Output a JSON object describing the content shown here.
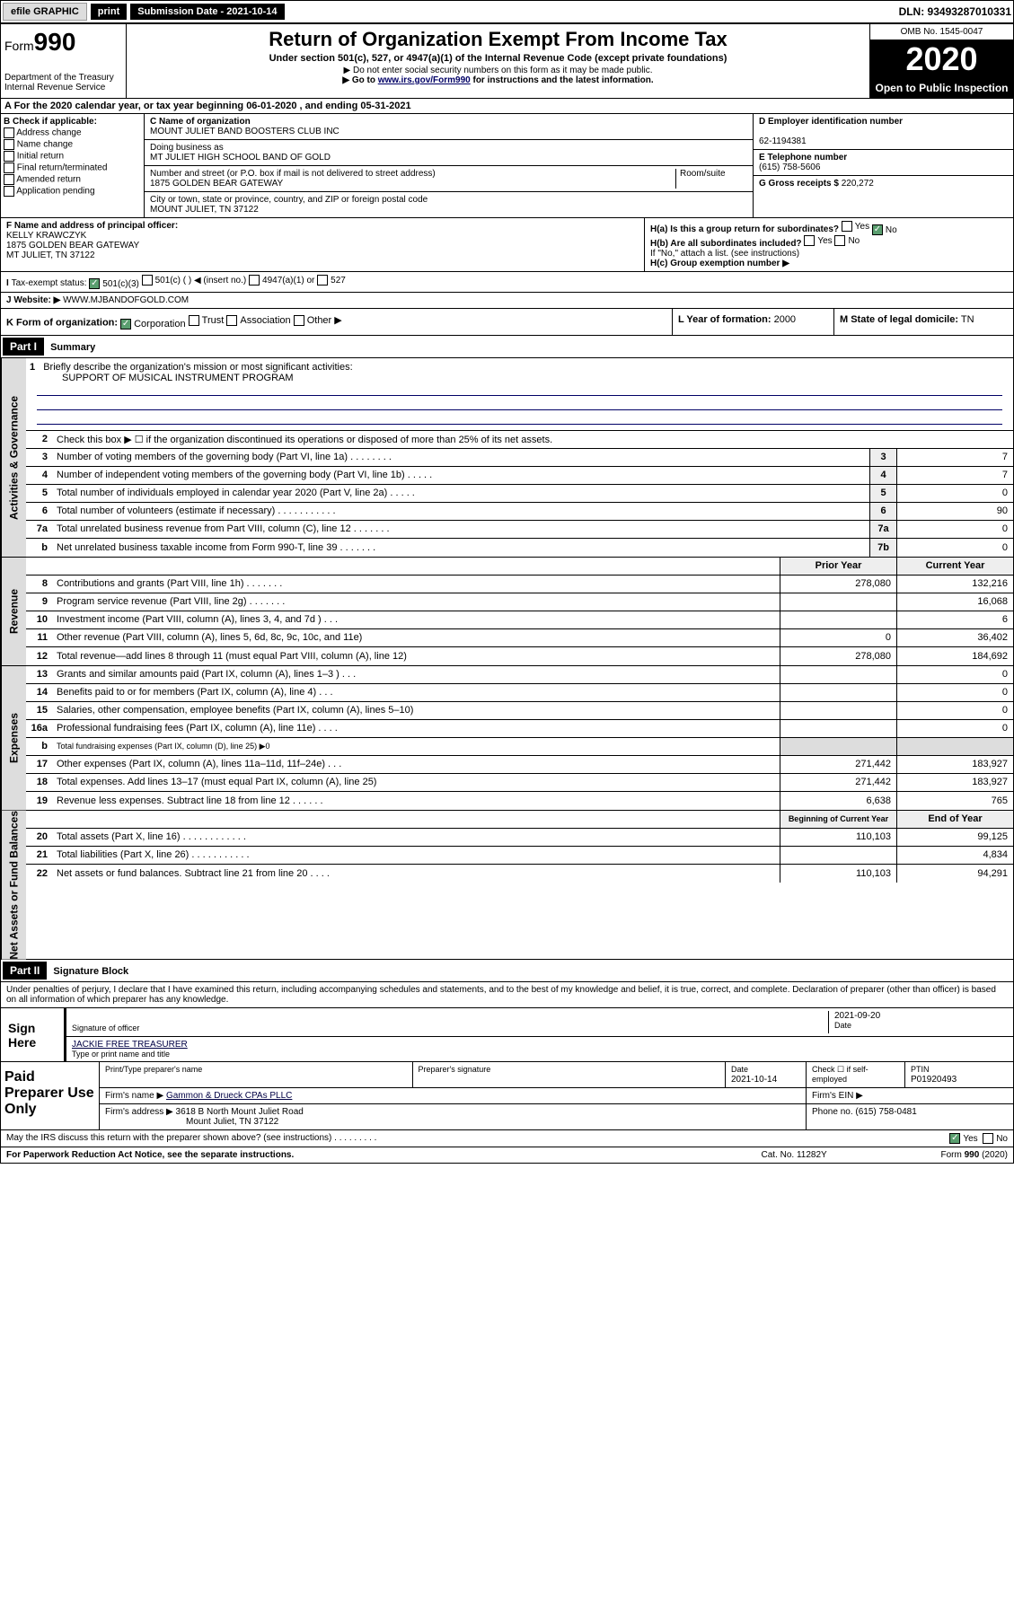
{
  "topbar": {
    "efile": "efile GRAPHIC",
    "print": "print",
    "subdate_label": "Submission Date - 2021-10-14",
    "dln": "DLN: 93493287010331"
  },
  "header": {
    "form_prefix": "Form",
    "form_num": "990",
    "dept1": "Department of the Treasury",
    "dept2": "Internal Revenue Service",
    "title": "Return of Organization Exempt From Income Tax",
    "sub1": "Under section 501(c), 527, or 4947(a)(1) of the Internal Revenue Code (except private foundations)",
    "sub2": "▶ Do not enter social security numbers on this form as it may be made public.",
    "sub3_pre": "▶ Go to ",
    "sub3_link": "www.irs.gov/Form990",
    "sub3_post": " for instructions and the latest information.",
    "omb": "OMB No. 1545-0047",
    "year": "2020",
    "open": "Open to Public Inspection"
  },
  "rowA": "A For the 2020 calendar year, or tax year beginning 06-01-2020    , and ending 05-31-2021",
  "colB": {
    "label": "B Check if applicable:",
    "opts": [
      "Address change",
      "Name change",
      "Initial return",
      "Final return/terminated",
      "Amended return",
      "Application pending"
    ]
  },
  "colC": {
    "name_label": "C Name of organization",
    "name": "MOUNT JULIET BAND BOOSTERS CLUB INC",
    "dba_label": "Doing business as",
    "dba": "MT JULIET HIGH SCHOOL BAND OF GOLD",
    "addr_label": "Number and street (or P.O. box if mail is not delivered to street address)",
    "room_label": "Room/suite",
    "addr": "1875 GOLDEN BEAR GATEWAY",
    "city_label": "City or town, state or province, country, and ZIP or foreign postal code",
    "city": "MOUNT JULIET, TN  37122"
  },
  "colD": {
    "ein_label": "D Employer identification number",
    "ein": "62-1194381",
    "tel_label": "E Telephone number",
    "tel": "(615) 758-5606",
    "gross_label": "G Gross receipts $",
    "gross": "220,272"
  },
  "rowF": {
    "label": "F Name and address of principal officer:",
    "name": "KELLY KRAWCZYK",
    "addr1": "1875 GOLDEN BEAR GATEWAY",
    "addr2": "MT JULIET, TN  37122"
  },
  "rowH": {
    "a": "H(a)  Is this a group return for subordinates?",
    "b": "H(b)  Are all subordinates included?",
    "b_note": "If \"No,\" attach a list. (see instructions)",
    "c": "H(c)  Group exemption number ▶",
    "yes": "Yes",
    "no": "No"
  },
  "rowI": {
    "label": "Tax-exempt status:",
    "opt1": "501(c)(3)",
    "opt2": "501(c) (  ) ◀ (insert no.)",
    "opt3": "4947(a)(1) or",
    "opt4": "527"
  },
  "rowJ": {
    "label": "Website: ▶",
    "val": "WWW.MJBANDOFGOLD.COM"
  },
  "rowK": {
    "label": "K Form of organization:",
    "opts": [
      "Corporation",
      "Trust",
      "Association",
      "Other ▶"
    ]
  },
  "rowL": {
    "label": "L Year of formation:",
    "val": "2000"
  },
  "rowM": {
    "label": "M State of legal domicile:",
    "val": "TN"
  },
  "part1": {
    "hdr": "Part I",
    "title": "Summary"
  },
  "summary": {
    "vtabs": [
      "Activities & Governance",
      "Revenue",
      "Expenses",
      "Net Assets or Fund Balances"
    ],
    "line1": {
      "num": "1",
      "text": "Briefly describe the organization's mission or most significant activities:",
      "val": "SUPPORT OF MUSICAL INSTRUMENT PROGRAM"
    },
    "line2": {
      "num": "2",
      "text": "Check this box ▶ ☐  if the organization discontinued its operations or disposed of more than 25% of its net assets."
    },
    "lines_gov": [
      {
        "num": "3",
        "text": "Number of voting members of the governing body (Part VI, line 1a)  .  .  .  .  .  .  .  .",
        "box": "3",
        "cur": "7"
      },
      {
        "num": "4",
        "text": "Number of independent voting members of the governing body (Part VI, line 1b)  .  .  .  .  .",
        "box": "4",
        "cur": "7"
      },
      {
        "num": "5",
        "text": "Total number of individuals employed in calendar year 2020 (Part V, line 2a)  .  .  .  .  .",
        "box": "5",
        "cur": "0"
      },
      {
        "num": "6",
        "text": "Total number of volunteers (estimate if necessary)  .  .  .  .  .  .  .  .  .  .  .",
        "box": "6",
        "cur": "90"
      },
      {
        "num": "7a",
        "text": "Total unrelated business revenue from Part VIII, column (C), line 12  .  .  .  .  .  .  .",
        "box": "7a",
        "cur": "0"
      },
      {
        "num": "b",
        "text": "Net unrelated business taxable income from Form 990-T, line 39  .  .  .  .  .  .  .",
        "box": "7b",
        "cur": "0"
      }
    ],
    "hdr_prior": "Prior Year",
    "hdr_cur": "Current Year",
    "lines_rev": [
      {
        "num": "8",
        "text": "Contributions and grants (Part VIII, line 1h)  .  .  .  .  .  .  .",
        "prior": "278,080",
        "cur": "132,216"
      },
      {
        "num": "9",
        "text": "Program service revenue (Part VIII, line 2g)  .  .  .  .  .  .  .",
        "prior": "",
        "cur": "16,068"
      },
      {
        "num": "10",
        "text": "Investment income (Part VIII, column (A), lines 3, 4, and 7d )  .  .  .",
        "prior": "",
        "cur": "6"
      },
      {
        "num": "11",
        "text": "Other revenue (Part VIII, column (A), lines 5, 6d, 8c, 9c, 10c, and 11e)",
        "prior": "0",
        "cur": "36,402"
      },
      {
        "num": "12",
        "text": "Total revenue—add lines 8 through 11 (must equal Part VIII, column (A), line 12)",
        "prior": "278,080",
        "cur": "184,692"
      }
    ],
    "lines_exp": [
      {
        "num": "13",
        "text": "Grants and similar amounts paid (Part IX, column (A), lines 1–3 )  .  .  .",
        "prior": "",
        "cur": "0"
      },
      {
        "num": "14",
        "text": "Benefits paid to or for members (Part IX, column (A), line 4)  .  .  .",
        "prior": "",
        "cur": "0"
      },
      {
        "num": "15",
        "text": "Salaries, other compensation, employee benefits (Part IX, column (A), lines 5–10)",
        "prior": "",
        "cur": "0"
      },
      {
        "num": "16a",
        "text": "Professional fundraising fees (Part IX, column (A), line 11e)  .  .  .  .",
        "prior": "",
        "cur": "0"
      },
      {
        "num": "b",
        "text": "Total fundraising expenses (Part IX, column (D), line 25) ▶0",
        "prior": "—",
        "cur": "—"
      },
      {
        "num": "17",
        "text": "Other expenses (Part IX, column (A), lines 11a–11d, 11f–24e)  .  .  .",
        "prior": "271,442",
        "cur": "183,927"
      },
      {
        "num": "18",
        "text": "Total expenses. Add lines 13–17 (must equal Part IX, column (A), line 25)",
        "prior": "271,442",
        "cur": "183,927"
      },
      {
        "num": "19",
        "text": "Revenue less expenses. Subtract line 18 from line 12  .  .  .  .  .  .",
        "prior": "6,638",
        "cur": "765"
      }
    ],
    "hdr_beg": "Beginning of Current Year",
    "hdr_end": "End of Year",
    "lines_net": [
      {
        "num": "20",
        "text": "Total assets (Part X, line 16)  .  .  .  .  .  .  .  .  .  .  .  .",
        "prior": "110,103",
        "cur": "99,125"
      },
      {
        "num": "21",
        "text": "Total liabilities (Part X, line 26)  .  .  .  .  .  .  .  .  .  .  .",
        "prior": "",
        "cur": "4,834"
      },
      {
        "num": "22",
        "text": "Net assets or fund balances. Subtract line 21 from line 20  .  .  .  .",
        "prior": "110,103",
        "cur": "94,291"
      }
    ]
  },
  "part2": {
    "hdr": "Part II",
    "title": "Signature Block"
  },
  "sig": {
    "decl": "Under penalties of perjury, I declare that I have examined this return, including accompanying schedules and statements, and to the best of my knowledge and belief, it is true, correct, and complete. Declaration of preparer (other than officer) is based on all information of which preparer has any knowledge.",
    "sign_here": "Sign Here",
    "sig_officer": "Signature of officer",
    "date": "2021-09-20",
    "date_label": "Date",
    "name_title": "JACKIE FREE TREASURER",
    "name_label": "Type or print name and title",
    "paid_label": "Paid Preparer Use Only",
    "prep_name_label": "Print/Type preparer's name",
    "prep_sig_label": "Preparer's signature",
    "prep_date_label": "Date",
    "prep_date": "2021-10-14",
    "check_self": "Check ☐ if self-employed",
    "ptin_label": "PTIN",
    "ptin": "P01920493",
    "firm_name_label": "Firm's name    ▶",
    "firm_name": "Gammon & Drueck CPAs PLLC",
    "firm_ein_label": "Firm's EIN ▶",
    "firm_addr_label": "Firm's address ▶",
    "firm_addr1": "3618 B North Mount Juliet Road",
    "firm_addr2": "Mount Juliet, TN  37122",
    "phone_label": "Phone no.",
    "phone": "(615) 758-0481",
    "discuss": "May the IRS discuss this return with the preparer shown above? (see instructions)  .  .  .  .  .  .  .  .  .",
    "yes": "Yes",
    "no": "No"
  },
  "footer": {
    "pra": "For Paperwork Reduction Act Notice, see the separate instructions.",
    "cat": "Cat. No. 11282Y",
    "form": "Form 990 (2020)"
  }
}
